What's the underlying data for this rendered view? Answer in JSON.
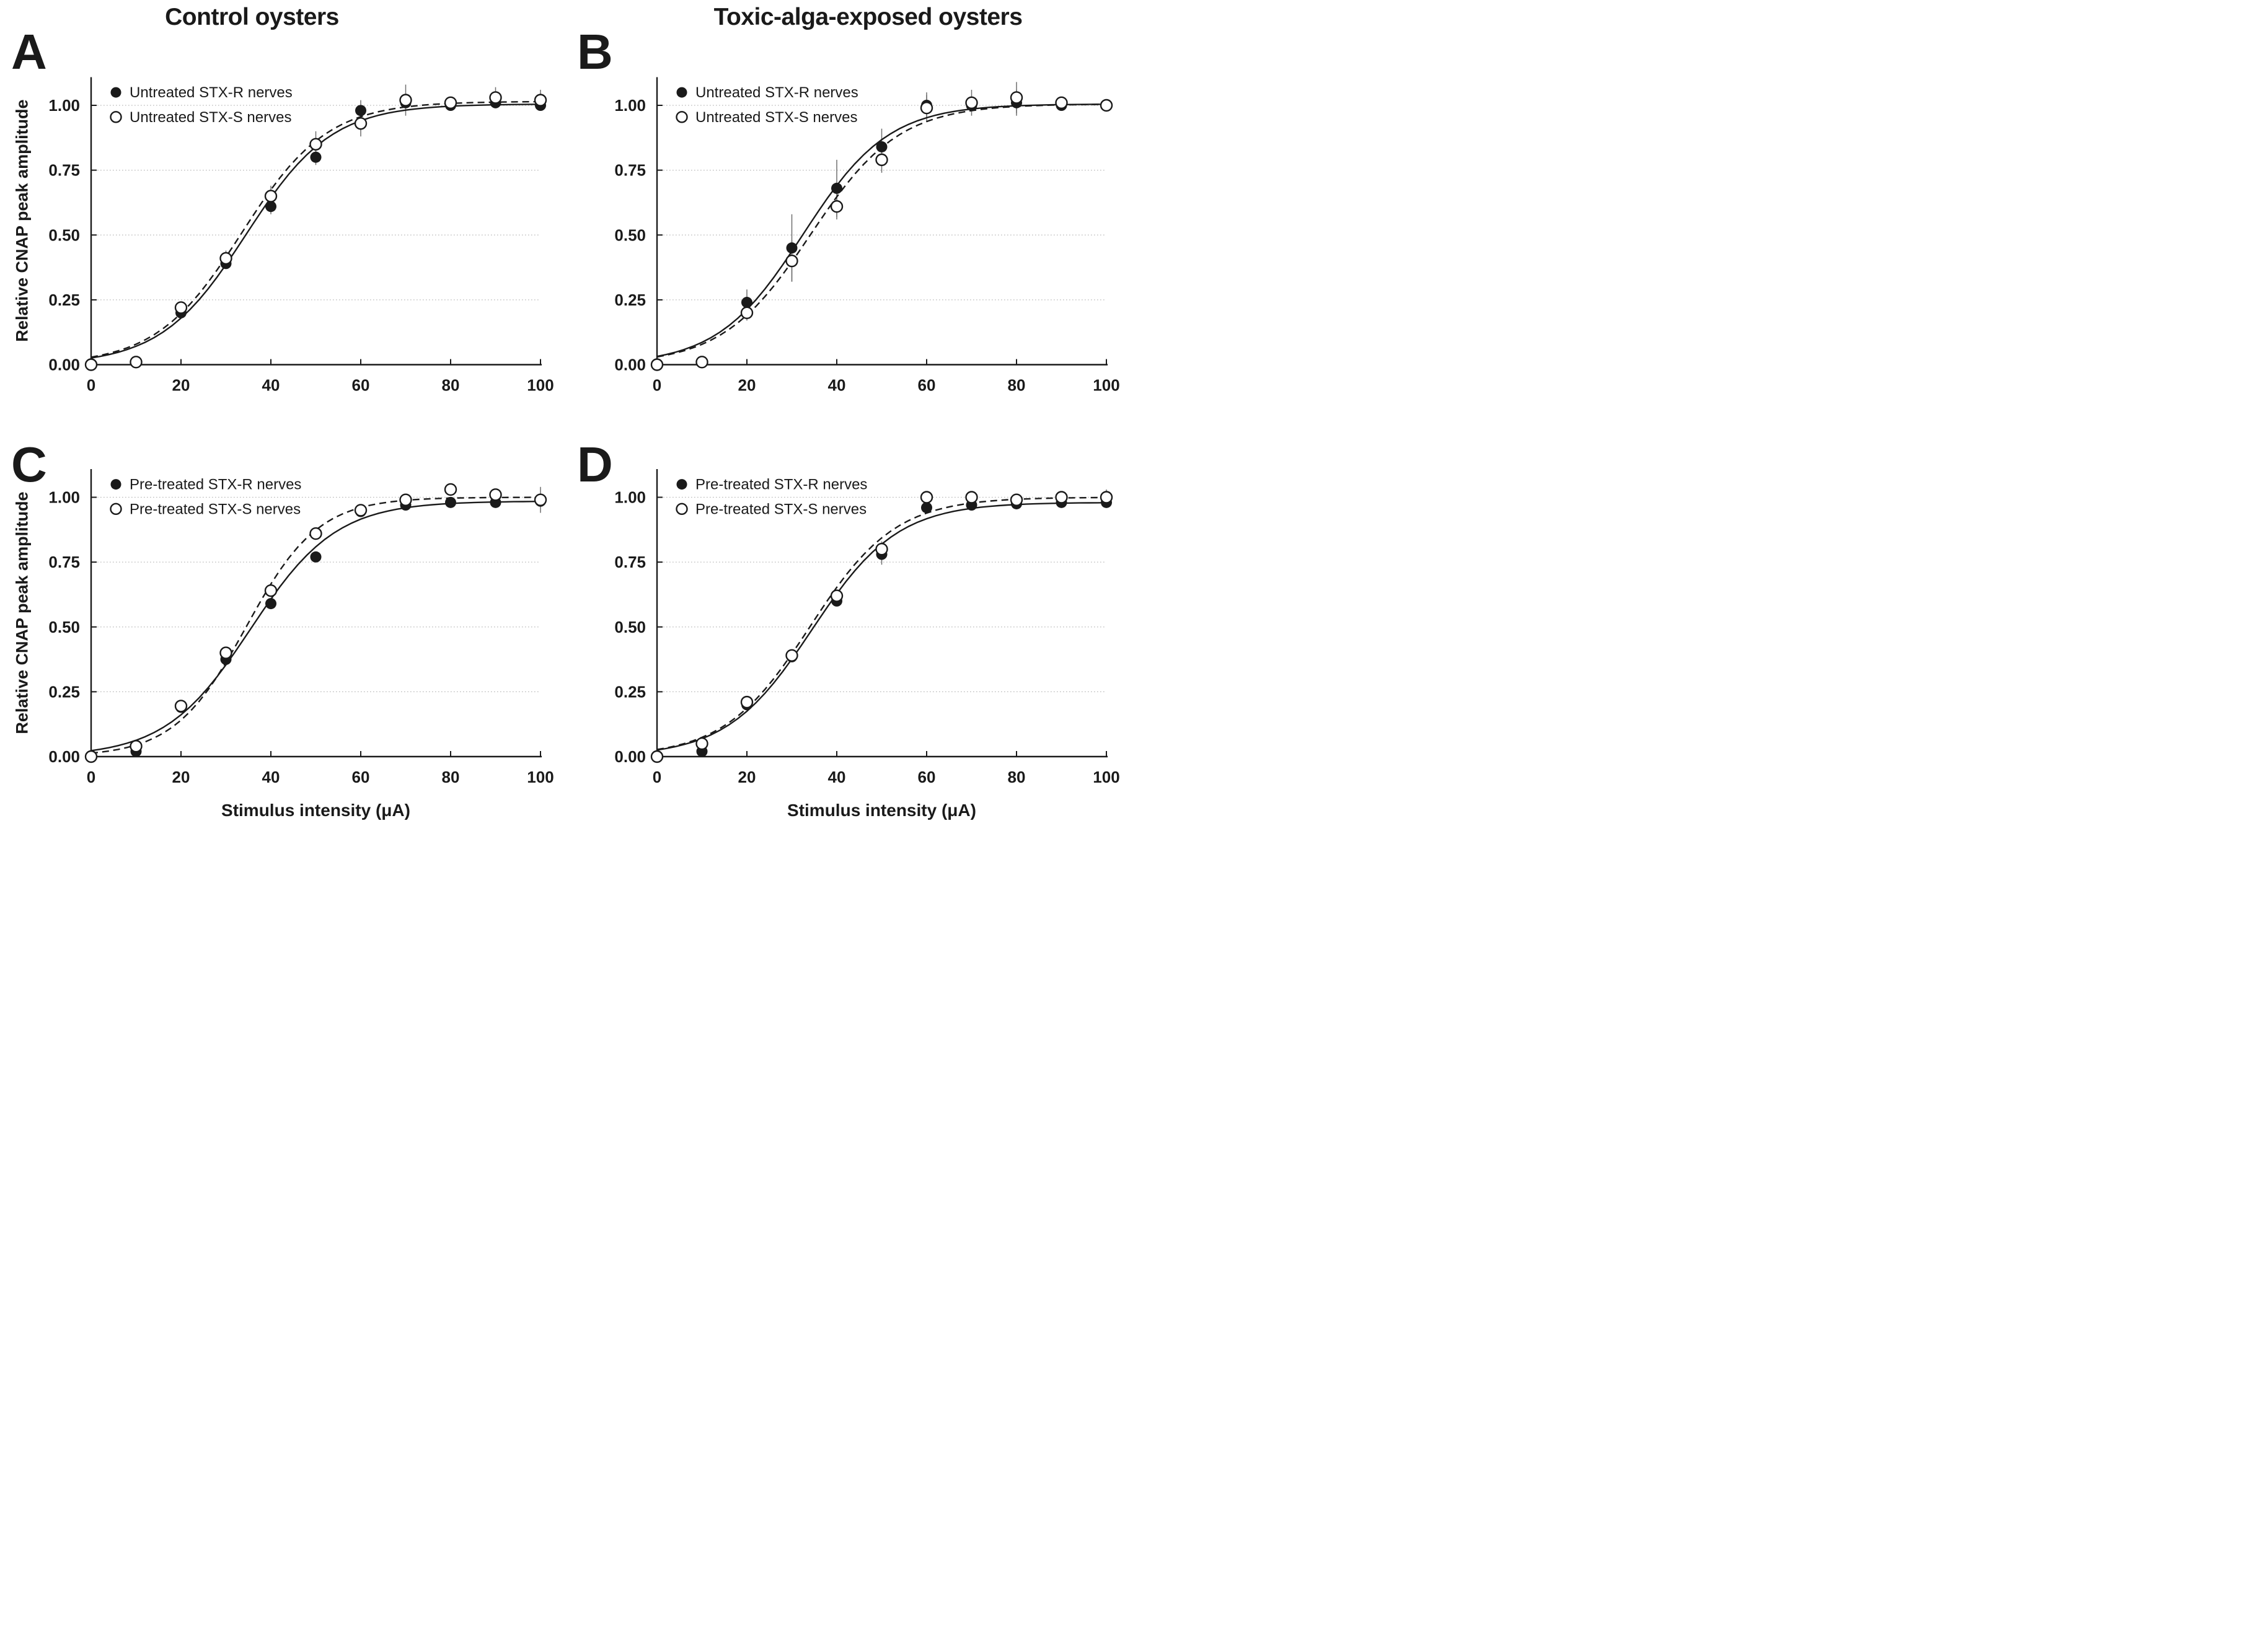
{
  "figure": {
    "column_titles": [
      "Control oysters",
      "Toxic-alga-exposed oysters"
    ],
    "panel_labels": [
      "A",
      "B",
      "C",
      "D"
    ],
    "y_axis_label": "Relative CNAP peak amplitude",
    "x_axis_label": "Stimulus intensity (μA)",
    "colors": {
      "ink": "#1a1a1a",
      "grid": "#b8b8b8",
      "error_bar": "#6e6e6e",
      "background": "#ffffff"
    }
  },
  "chart_data": [
    {
      "panel": "A",
      "type": "scatter",
      "column_title": "Control oysters",
      "xlabel": "Stimulus intensity (μA)",
      "ylabel": "Relative CNAP peak amplitude",
      "xlim": [
        0,
        100
      ],
      "ylim": [
        0,
        1.11
      ],
      "xticks": [
        0,
        20,
        40,
        60,
        80,
        100
      ],
      "yticks": [
        0,
        0.25,
        0.5,
        0.75,
        1.0
      ],
      "grid": "dotted horizontal",
      "legend_position": "top-left",
      "x": [
        0,
        10,
        20,
        30,
        40,
        50,
        60,
        70,
        80,
        90,
        100
      ],
      "series": [
        {
          "name": "Untreated STX-R nerves",
          "marker": "filled-circle",
          "line": "solid",
          "values": [
            0.0,
            0.01,
            0.2,
            0.39,
            0.61,
            0.8,
            0.98,
            1.01,
            1.0,
            1.01,
            1.0
          ],
          "errors": [
            0,
            0,
            0.02,
            0.02,
            0.03,
            0.03,
            0.04,
            0,
            0.02,
            0.02,
            0.02
          ],
          "fit": {
            "ymax": 1.005,
            "x50": 34.5,
            "k": 9.5
          }
        },
        {
          "name": "Untreated STX-S nerves",
          "marker": "open-circle",
          "line": "dashed",
          "values": [
            0.0,
            0.01,
            0.22,
            0.41,
            0.65,
            0.85,
            0.93,
            1.02,
            1.01,
            1.03,
            1.02
          ],
          "errors": [
            0,
            0,
            0.02,
            0.03,
            0.04,
            0.05,
            0.05,
            0.06,
            0.02,
            0.04,
            0.04
          ],
          "fit": {
            "ymax": 1.015,
            "x50": 33.5,
            "k": 9.5
          }
        }
      ]
    },
    {
      "panel": "B",
      "type": "scatter",
      "column_title": "Toxic-alga-exposed oysters",
      "xlabel": "Stimulus intensity (μA)",
      "ylabel": "Relative CNAP peak amplitude",
      "xlim": [
        0,
        100
      ],
      "ylim": [
        0,
        1.11
      ],
      "xticks": [
        0,
        20,
        40,
        60,
        80,
        100
      ],
      "yticks": [
        0,
        0.25,
        0.5,
        0.75,
        1.0
      ],
      "grid": "dotted horizontal",
      "legend_position": "top-left",
      "x": [
        0,
        10,
        20,
        30,
        40,
        50,
        60,
        70,
        80,
        90,
        100
      ],
      "series": [
        {
          "name": "Untreated STX-R nerves",
          "marker": "filled-circle",
          "line": "solid",
          "values": [
            0.0,
            0.01,
            0.24,
            0.45,
            0.68,
            0.84,
            1.0,
            1.0,
            1.01,
            1.0,
            1.0
          ],
          "errors": [
            0,
            0,
            0.05,
            0.13,
            0.11,
            0.07,
            0.05,
            0,
            0.05,
            0,
            0
          ],
          "fit": {
            "ymax": 1.005,
            "x50": 32.5,
            "k": 9.5
          }
        },
        {
          "name": "Untreated STX-S nerves",
          "marker": "open-circle",
          "line": "dashed",
          "values": [
            0.0,
            0.01,
            0.2,
            0.4,
            0.61,
            0.79,
            0.99,
            1.01,
            1.03,
            1.01,
            1.0
          ],
          "errors": [
            0,
            0,
            0.03,
            0.08,
            0.05,
            0.05,
            0.05,
            0.05,
            0.06,
            0.02,
            0.02
          ],
          "fit": {
            "ymax": 1.005,
            "x50": 34.2,
            "k": 9.8
          }
        }
      ]
    },
    {
      "panel": "C",
      "type": "scatter",
      "column_title": "Control oysters",
      "xlabel": "Stimulus intensity (μA)",
      "ylabel": "Relative CNAP peak amplitude",
      "xlim": [
        0,
        100
      ],
      "ylim": [
        0,
        1.11
      ],
      "xticks": [
        0,
        20,
        40,
        60,
        80,
        100
      ],
      "yticks": [
        0,
        0.25,
        0.5,
        0.75,
        1.0
      ],
      "grid": "dotted horizontal",
      "legend_position": "top-left",
      "x": [
        0,
        10,
        20,
        30,
        40,
        50,
        60,
        70,
        80,
        90,
        100
      ],
      "series": [
        {
          "name": "Pre-treated STX-R nerves",
          "marker": "filled-circle",
          "line": "solid",
          "values": [
            0.0,
            0.02,
            0.19,
            0.375,
            0.59,
            0.77,
            0.945,
            0.97,
            0.98,
            0.98,
            0.985
          ],
          "errors": [
            0,
            0.01,
            0,
            0.02,
            0.02,
            0.02,
            0,
            0.02,
            0,
            0.02,
            0
          ],
          "fit": {
            "ymax": 0.985,
            "x50": 35.5,
            "k": 9.5
          }
        },
        {
          "name": "Pre-treated STX-S nerves",
          "marker": "open-circle",
          "line": "dashed",
          "values": [
            0.0,
            0.04,
            0.195,
            0.4,
            0.64,
            0.86,
            0.95,
            0.99,
            1.03,
            1.01,
            0.99
          ],
          "errors": [
            0,
            0.01,
            0.01,
            0.02,
            0.02,
            0.02,
            0.02,
            0.02,
            0.02,
            0.02,
            0.05
          ],
          "fit": {
            "ymax": 1.0,
            "x50": 34.5,
            "k": 8.0
          }
        }
      ]
    },
    {
      "panel": "D",
      "type": "scatter",
      "column_title": "Toxic-alga-exposed oysters",
      "xlabel": "Stimulus intensity (μA)",
      "ylabel": "Relative CNAP peak amplitude",
      "xlim": [
        0,
        100
      ],
      "ylim": [
        0,
        1.11
      ],
      "xticks": [
        0,
        20,
        40,
        60,
        80,
        100
      ],
      "yticks": [
        0,
        0.25,
        0.5,
        0.75,
        1.0
      ],
      "grid": "dotted horizontal",
      "legend_position": "top-left",
      "x": [
        0,
        10,
        20,
        30,
        40,
        50,
        60,
        70,
        80,
        90,
        100
      ],
      "series": [
        {
          "name": "Pre-treated STX-R nerves",
          "marker": "filled-circle",
          "line": "solid",
          "values": [
            0.0,
            0.02,
            0.2,
            0.385,
            0.6,
            0.78,
            0.96,
            0.97,
            0.975,
            0.98,
            0.98
          ],
          "errors": [
            0,
            0.01,
            0.01,
            0.02,
            0.02,
            0.04,
            0.02,
            0.02,
            0.02,
            0.02,
            0.02
          ],
          "fit": {
            "ymax": 0.98,
            "x50": 34.5,
            "k": 9.5
          }
        },
        {
          "name": "Pre-treated STX-S nerves",
          "marker": "open-circle",
          "line": "dashed",
          "values": [
            0.0,
            0.05,
            0.21,
            0.39,
            0.62,
            0.8,
            1.0,
            1.0,
            0.99,
            1.0,
            1.0
          ],
          "errors": [
            0,
            0.01,
            0.01,
            0.02,
            0.02,
            0.03,
            0.02,
            0.02,
            0.02,
            0.02,
            0.03
          ],
          "fit": {
            "ymax": 1.0,
            "x50": 34.0,
            "k": 9.5
          }
        }
      ]
    }
  ]
}
